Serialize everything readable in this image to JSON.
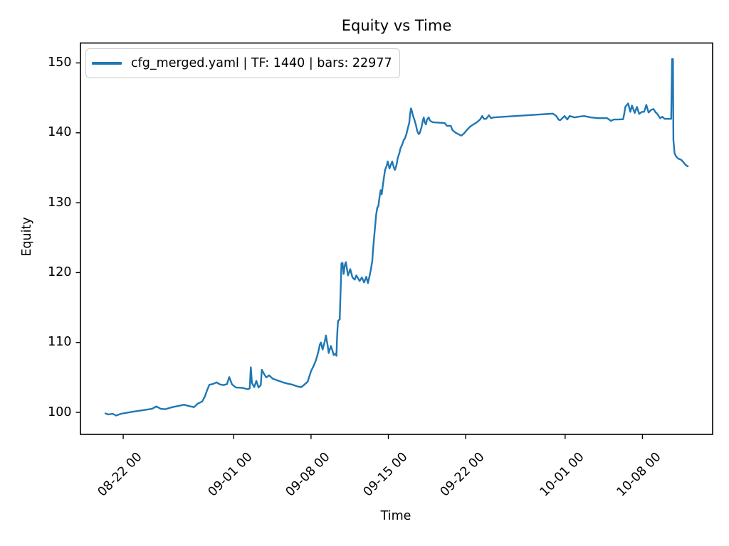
{
  "chart_data": {
    "type": "line",
    "title": "Equity vs Time",
    "xlabel": "Time",
    "ylabel": "Equity",
    "legend": [
      "cfg_merged.yaml | TF: 1440 | bars: 22977"
    ],
    "legend_position": "upper left",
    "grid": false,
    "line_color": "#1f77b4",
    "axis_color": "#000000",
    "x_note": "x values are day offsets relative to the 08-22 00 tick",
    "xlim_days": [
      -3.87,
      53.35
    ],
    "ylim": [
      96.85,
      152.85
    ],
    "yticks": [
      100,
      110,
      120,
      130,
      140,
      150
    ],
    "xticks": [
      {
        "t": 0,
        "label": "08-22 00"
      },
      {
        "t": 10,
        "label": "09-01 00"
      },
      {
        "t": 17,
        "label": "09-08 00"
      },
      {
        "t": 24,
        "label": "09-15 00"
      },
      {
        "t": 31,
        "label": "09-22 00"
      },
      {
        "t": 40,
        "label": "10-01 00"
      },
      {
        "t": 47,
        "label": "10-08 00"
      }
    ],
    "series": [
      {
        "name": "cfg_merged.yaml | TF: 1440 | bars: 22977",
        "points": [
          [
            -1.61,
            99.85
          ],
          [
            -1.35,
            99.7
          ],
          [
            -0.95,
            99.8
          ],
          [
            -0.65,
            99.55
          ],
          [
            -0.2,
            99.8
          ],
          [
            0.9,
            100.1
          ],
          [
            1.75,
            100.3
          ],
          [
            2.6,
            100.5
          ],
          [
            3.0,
            100.85
          ],
          [
            3.4,
            100.5
          ],
          [
            3.8,
            100.45
          ],
          [
            4.45,
            100.75
          ],
          [
            5.1,
            100.95
          ],
          [
            5.5,
            101.1
          ],
          [
            5.95,
            100.9
          ],
          [
            6.4,
            100.75
          ],
          [
            6.75,
            101.25
          ],
          [
            7.15,
            101.55
          ],
          [
            7.4,
            102.3
          ],
          [
            7.6,
            103.2
          ],
          [
            7.8,
            103.95
          ],
          [
            8.1,
            104.05
          ],
          [
            8.45,
            104.3
          ],
          [
            8.75,
            104.0
          ],
          [
            9.1,
            103.9
          ],
          [
            9.4,
            104.05
          ],
          [
            9.6,
            105.05
          ],
          [
            9.85,
            104.0
          ],
          [
            10.2,
            103.55
          ],
          [
            10.8,
            103.5
          ],
          [
            11.3,
            103.3
          ],
          [
            11.45,
            103.45
          ],
          [
            11.55,
            106.45
          ],
          [
            11.65,
            104.2
          ],
          [
            11.85,
            103.6
          ],
          [
            12.05,
            104.5
          ],
          [
            12.25,
            103.55
          ],
          [
            12.45,
            103.9
          ],
          [
            12.55,
            106.1
          ],
          [
            12.75,
            105.5
          ],
          [
            12.95,
            105.0
          ],
          [
            13.2,
            105.3
          ],
          [
            13.55,
            104.8
          ],
          [
            14.0,
            104.55
          ],
          [
            14.45,
            104.3
          ],
          [
            14.9,
            104.1
          ],
          [
            15.35,
            103.95
          ],
          [
            15.8,
            103.7
          ],
          [
            16.1,
            103.6
          ],
          [
            16.35,
            103.9
          ],
          [
            16.7,
            104.4
          ],
          [
            17.0,
            105.9
          ],
          [
            17.25,
            106.7
          ],
          [
            17.45,
            107.5
          ],
          [
            17.65,
            108.6
          ],
          [
            17.8,
            109.7
          ],
          [
            17.9,
            110.0
          ],
          [
            18.05,
            109.0
          ],
          [
            18.25,
            110.2
          ],
          [
            18.35,
            111.0
          ],
          [
            18.5,
            109.6
          ],
          [
            18.6,
            108.5
          ],
          [
            18.8,
            109.5
          ],
          [
            18.95,
            108.8
          ],
          [
            19.05,
            108.2
          ],
          [
            19.2,
            108.4
          ],
          [
            19.3,
            108.1
          ],
          [
            19.35,
            110.5
          ],
          [
            19.4,
            112.0
          ],
          [
            19.45,
            113.1
          ],
          [
            19.6,
            113.3
          ],
          [
            19.65,
            116.0
          ],
          [
            19.7,
            118.5
          ],
          [
            19.75,
            121.3
          ],
          [
            19.85,
            121.4
          ],
          [
            19.95,
            119.8
          ],
          [
            20.05,
            121.0
          ],
          [
            20.15,
            121.5
          ],
          [
            20.35,
            119.6
          ],
          [
            20.55,
            120.5
          ],
          [
            20.75,
            119.3
          ],
          [
            20.95,
            119.0
          ],
          [
            21.1,
            119.6
          ],
          [
            21.4,
            118.8
          ],
          [
            21.6,
            119.3
          ],
          [
            21.8,
            118.6
          ],
          [
            22.0,
            119.4
          ],
          [
            22.15,
            118.5
          ],
          [
            22.3,
            119.5
          ],
          [
            22.4,
            120.3
          ],
          [
            22.55,
            121.7
          ],
          [
            22.6,
            123.0
          ],
          [
            22.7,
            124.8
          ],
          [
            22.8,
            126.6
          ],
          [
            22.9,
            128.3
          ],
          [
            23.0,
            129.3
          ],
          [
            23.1,
            129.5
          ],
          [
            23.2,
            130.8
          ],
          [
            23.3,
            131.8
          ],
          [
            23.4,
            131.2
          ],
          [
            23.5,
            132.5
          ],
          [
            23.6,
            133.6
          ],
          [
            23.7,
            134.7
          ],
          [
            23.85,
            135.3
          ],
          [
            23.95,
            135.9
          ],
          [
            24.1,
            134.9
          ],
          [
            24.2,
            135.3
          ],
          [
            24.35,
            135.9
          ],
          [
            24.5,
            135.0
          ],
          [
            24.6,
            134.7
          ],
          [
            24.75,
            135.5
          ],
          [
            24.85,
            136.4
          ],
          [
            25.0,
            137.1
          ],
          [
            25.1,
            137.8
          ],
          [
            25.25,
            138.3
          ],
          [
            25.4,
            139.0
          ],
          [
            25.5,
            139.2
          ],
          [
            25.65,
            139.9
          ],
          [
            25.75,
            140.6
          ],
          [
            25.9,
            141.5
          ],
          [
            25.95,
            142.5
          ],
          [
            26.05,
            143.5
          ],
          [
            26.15,
            143.0
          ],
          [
            26.2,
            142.6
          ],
          [
            26.35,
            141.9
          ],
          [
            26.5,
            141.1
          ],
          [
            26.6,
            140.3
          ],
          [
            26.75,
            139.8
          ],
          [
            26.85,
            140.0
          ],
          [
            27.0,
            140.8
          ],
          [
            27.1,
            141.6
          ],
          [
            27.2,
            142.2
          ],
          [
            27.3,
            141.5
          ],
          [
            27.4,
            141.2
          ],
          [
            27.5,
            141.9
          ],
          [
            27.65,
            142.2
          ],
          [
            27.75,
            141.8
          ],
          [
            27.9,
            141.6
          ],
          [
            28.1,
            141.5
          ],
          [
            29.1,
            141.4
          ],
          [
            29.3,
            141.0
          ],
          [
            29.65,
            141.0
          ],
          [
            29.8,
            140.4
          ],
          [
            30.1,
            140.0
          ],
          [
            30.35,
            139.8
          ],
          [
            30.6,
            139.6
          ],
          [
            30.85,
            139.9
          ],
          [
            31.1,
            140.4
          ],
          [
            31.4,
            140.9
          ],
          [
            31.7,
            141.2
          ],
          [
            32.0,
            141.5
          ],
          [
            32.3,
            141.9
          ],
          [
            32.5,
            142.4
          ],
          [
            32.65,
            142.0
          ],
          [
            32.85,
            142.0
          ],
          [
            33.1,
            142.5
          ],
          [
            33.3,
            142.1
          ],
          [
            33.5,
            142.2
          ],
          [
            38.9,
            142.75
          ],
          [
            39.2,
            142.4
          ],
          [
            39.4,
            141.9
          ],
          [
            39.55,
            141.8
          ],
          [
            39.75,
            142.1
          ],
          [
            39.95,
            142.4
          ],
          [
            40.2,
            141.9
          ],
          [
            40.4,
            142.4
          ],
          [
            40.65,
            142.3
          ],
          [
            40.85,
            142.2
          ],
          [
            41.2,
            142.3
          ],
          [
            41.7,
            142.4
          ],
          [
            42.35,
            142.2
          ],
          [
            43.0,
            142.1
          ],
          [
            43.8,
            142.1
          ],
          [
            44.15,
            141.7
          ],
          [
            44.4,
            141.9
          ],
          [
            44.8,
            141.9
          ],
          [
            45.25,
            141.95
          ],
          [
            45.35,
            142.7
          ],
          [
            45.45,
            143.7
          ],
          [
            45.7,
            144.2
          ],
          [
            45.9,
            143.0
          ],
          [
            46.05,
            143.9
          ],
          [
            46.3,
            142.85
          ],
          [
            46.5,
            143.7
          ],
          [
            46.7,
            142.7
          ],
          [
            46.95,
            143.0
          ],
          [
            47.15,
            143.0
          ],
          [
            47.35,
            144.0
          ],
          [
            47.55,
            142.9
          ],
          [
            47.8,
            143.3
          ],
          [
            48.0,
            143.4
          ],
          [
            48.2,
            142.9
          ],
          [
            48.3,
            142.8
          ],
          [
            48.6,
            142.1
          ],
          [
            48.8,
            142.3
          ],
          [
            49.0,
            142.0
          ],
          [
            49.4,
            142.0
          ],
          [
            49.6,
            142.0
          ],
          [
            49.68,
            150.55
          ],
          [
            49.76,
            150.55
          ],
          [
            49.8,
            139.0
          ],
          [
            49.9,
            137.1
          ],
          [
            50.05,
            136.6
          ],
          [
            50.25,
            136.3
          ],
          [
            50.5,
            136.15
          ],
          [
            50.7,
            135.8
          ],
          [
            50.9,
            135.4
          ],
          [
            51.1,
            135.2
          ]
        ]
      }
    ]
  }
}
